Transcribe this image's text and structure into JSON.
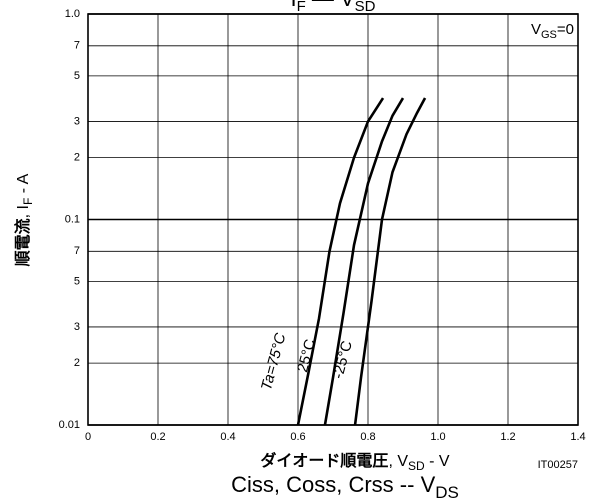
{
  "chart_data": {
    "type": "line",
    "title": [
      "I",
      "F",
      "  —  V",
      "SD"
    ],
    "subtitle": [
      "Ciss, Coss, Crss  --  V",
      "DS"
    ],
    "x_label": [
      "ダイオード順電圧",
      ", V",
      "SD",
      " - V"
    ],
    "y_label": [
      "順電流",
      ", I",
      "F",
      " - A"
    ],
    "annotation": [
      "V",
      "GS",
      "=0"
    ],
    "figure_id": "IT00257",
    "xlim": [
      0,
      1.4
    ],
    "xticks": [
      0,
      0.2,
      0.4,
      0.6,
      0.8,
      {
        "value": 1,
        "label": "1.0"
      },
      1.2,
      1.4
    ],
    "ylim": [
      0.01,
      1
    ],
    "yscale": "log",
    "yticks": [
      0.01,
      {
        "value": 0.02,
        "label": "2"
      },
      {
        "value": 0.03,
        "label": "3"
      },
      {
        "value": 0.05,
        "label": "5"
      },
      {
        "value": 0.07,
        "label": "7"
      },
      0.1,
      {
        "value": 0.2,
        "label": "2"
      },
      {
        "value": 0.3,
        "label": "3"
      },
      {
        "value": 0.5,
        "label": "5"
      },
      {
        "value": 0.7,
        "label": "7"
      },
      {
        "value": 1,
        "label": "1.0"
      }
    ],
    "grid": true,
    "series": [
      {
        "name": "Ta=75°C",
        "color": "#000000",
        "x": [
          0.6,
          0.63,
          0.66,
          0.69,
          0.72,
          0.76,
          0.8,
          0.843
        ],
        "values": [
          0.01,
          0.018,
          0.033,
          0.07,
          0.12,
          0.2,
          0.3,
          0.39
        ]
      },
      {
        "name": "25°C",
        "color": "#000000",
        "x": [
          0.677,
          0.7,
          0.73,
          0.76,
          0.8,
          0.84,
          0.87,
          0.9
        ],
        "values": [
          0.01,
          0.017,
          0.035,
          0.075,
          0.15,
          0.24,
          0.32,
          0.39
        ]
      },
      {
        "name": "-25°C",
        "color": "#000000",
        "x": [
          0.763,
          0.78,
          0.81,
          0.84,
          0.87,
          0.91,
          0.94,
          0.963
        ],
        "values": [
          0.01,
          0.017,
          0.04,
          0.1,
          0.17,
          0.26,
          0.33,
          0.39
        ]
      }
    ]
  }
}
